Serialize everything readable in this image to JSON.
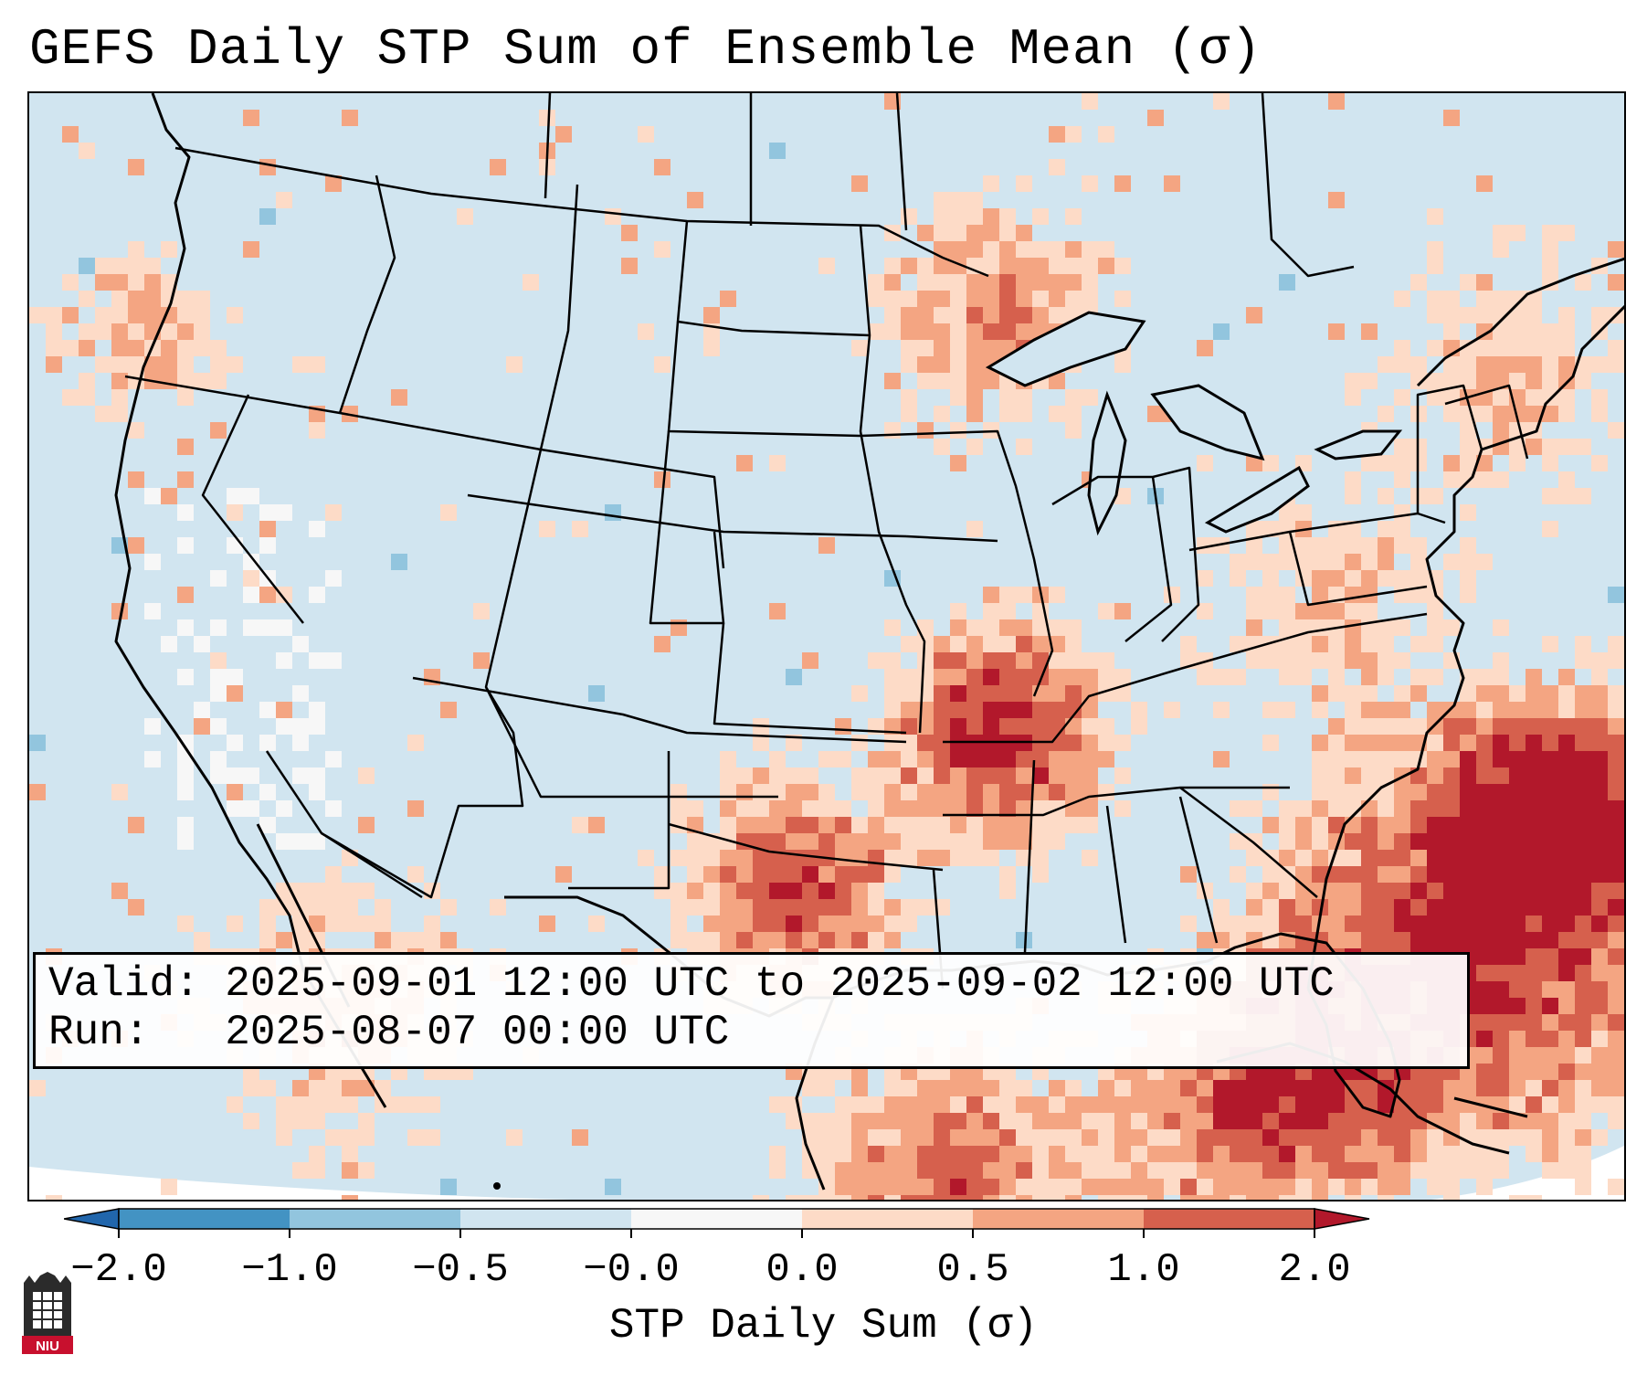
{
  "title": "GEFS Daily STP Sum of Ensemble Mean (σ)",
  "info": {
    "valid_line": "Valid: 2025-09-01 12:00 UTC to 2025-09-02 12:00 UTC",
    "run_line": "Run:   2025-08-07 00:00 UTC"
  },
  "colorbar": {
    "label": "STP Daily Sum (σ)",
    "ticks": [
      "−2.0",
      "−1.0",
      "−0.5",
      "−0.0",
      "0.0",
      "0.5",
      "1.0",
      "2.0"
    ],
    "colors": [
      "#2166ac",
      "#4393c3",
      "#92c5de",
      "#d1e5f0",
      "#f7f7f7",
      "#fddbc7",
      "#f4a582",
      "#d6604d",
      "#b2182b"
    ]
  },
  "logo": {
    "text": "NIU"
  },
  "map": {
    "projection": "Lambert Conformal (CONUS)",
    "field": "STP daily sum anomaly",
    "highlights": [
      "Mid-South / Arkansas maximum",
      "Texas maximum",
      "Florida & Gulf Stream maximum",
      "Upper Midwest / Lake Superior area"
    ]
  }
}
